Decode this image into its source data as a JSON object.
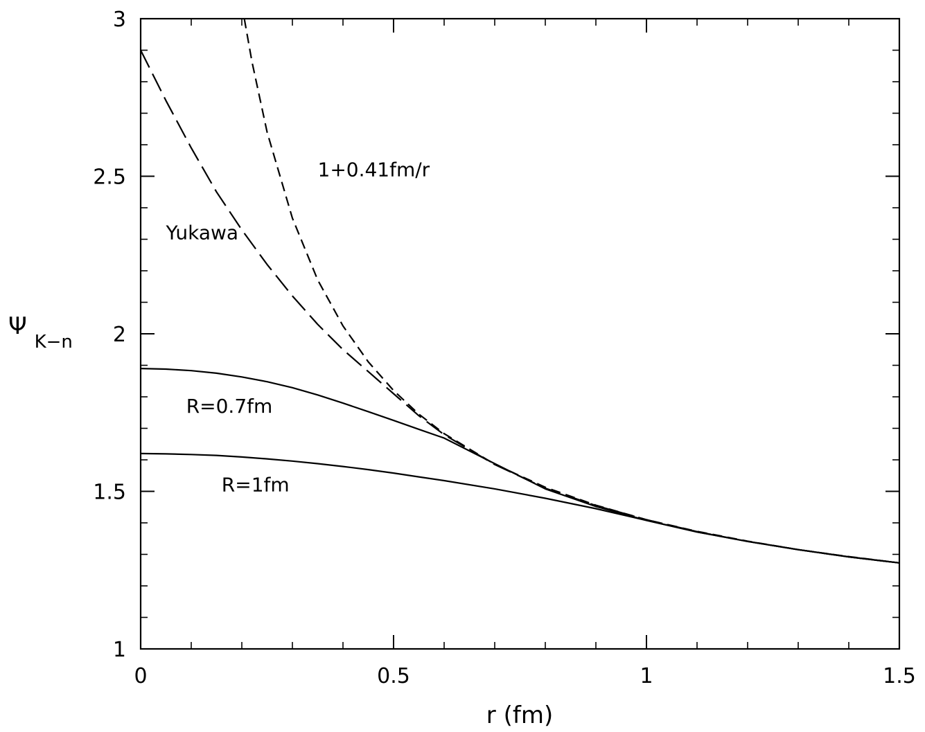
{
  "chart_data": {
    "type": "line",
    "xlabel": "r (fm)",
    "ylabel": {
      "symbol": "Ψ",
      "subscript": "K−n"
    },
    "xlim": [
      0,
      1.5
    ],
    "ylim": [
      1,
      3
    ],
    "x_ticks": [
      {
        "value": 0,
        "label": "0"
      },
      {
        "value": 0.5,
        "label": "0.5"
      },
      {
        "value": 1,
        "label": "1"
      },
      {
        "value": 1.5,
        "label": "1.5"
      }
    ],
    "y_ticks": [
      {
        "value": 1,
        "label": "1"
      },
      {
        "value": 1.5,
        "label": "1.5"
      },
      {
        "value": 2,
        "label": "2"
      },
      {
        "value": 2.5,
        "label": "2.5"
      },
      {
        "value": 3,
        "label": "3"
      }
    ],
    "x_minor_step": 0.1,
    "y_minor_step": 0.1,
    "grid": false,
    "series": [
      {
        "name": "1+0.41fm/r",
        "style": "short-dash",
        "x": [
          0.205,
          0.22,
          0.25,
          0.3,
          0.35,
          0.4,
          0.45,
          0.5,
          0.55,
          0.6,
          0.7,
          0.8,
          0.9,
          1.0,
          1.1,
          1.2,
          1.3,
          1.4,
          1.5
        ],
        "y": [
          3.0,
          2.864,
          2.64,
          2.367,
          2.171,
          2.025,
          1.911,
          1.82,
          1.745,
          1.683,
          1.586,
          1.513,
          1.456,
          1.41,
          1.373,
          1.342,
          1.315,
          1.293,
          1.273
        ]
      },
      {
        "name": "Yukawa",
        "style": "long-dash",
        "x": [
          0.0,
          0.05,
          0.1,
          0.15,
          0.2,
          0.25,
          0.3,
          0.35,
          0.4,
          0.45,
          0.5,
          0.55,
          0.6,
          0.7,
          0.8,
          0.9,
          1.0,
          1.1,
          1.2,
          1.3,
          1.4,
          1.5
        ],
        "y": [
          2.9,
          2.74,
          2.59,
          2.45,
          2.33,
          2.22,
          2.12,
          2.03,
          1.95,
          1.88,
          1.81,
          1.74,
          1.68,
          1.585,
          1.51,
          1.455,
          1.41,
          1.372,
          1.341,
          1.315,
          1.292,
          1.273
        ]
      },
      {
        "name": "R=0.7fm",
        "style": "solid",
        "x": [
          0.0,
          0.05,
          0.1,
          0.15,
          0.2,
          0.25,
          0.3,
          0.35,
          0.4,
          0.45,
          0.5,
          0.55,
          0.6,
          0.7,
          0.8,
          0.9,
          1.0,
          1.1,
          1.2,
          1.3,
          1.4,
          1.5
        ],
        "y": [
          1.89,
          1.888,
          1.883,
          1.875,
          1.863,
          1.848,
          1.829,
          1.806,
          1.78,
          1.753,
          1.725,
          1.697,
          1.669,
          1.588,
          1.508,
          1.452,
          1.408,
          1.371,
          1.341,
          1.315,
          1.292,
          1.273
        ]
      },
      {
        "name": "R=1fm",
        "style": "solid",
        "x": [
          0.0,
          0.05,
          0.1,
          0.15,
          0.2,
          0.25,
          0.3,
          0.35,
          0.4,
          0.45,
          0.5,
          0.55,
          0.6,
          0.7,
          0.8,
          0.9,
          1.0,
          1.1,
          1.2,
          1.3,
          1.4,
          1.5
        ],
        "y": [
          1.62,
          1.619,
          1.617,
          1.614,
          1.609,
          1.603,
          1.596,
          1.588,
          1.579,
          1.569,
          1.558,
          1.546,
          1.534,
          1.508,
          1.478,
          1.445,
          1.408,
          1.371,
          1.341,
          1.315,
          1.292,
          1.273
        ]
      }
    ],
    "annotations": [
      {
        "text": "1+0.41fm/r",
        "x": 0.35,
        "y": 2.5
      },
      {
        "text": "Yukawa",
        "x": 0.05,
        "y": 2.3
      },
      {
        "text": "R=0.7fm",
        "x": 0.09,
        "y": 1.75
      },
      {
        "text": "R=1fm",
        "x": 0.16,
        "y": 1.5
      }
    ]
  }
}
